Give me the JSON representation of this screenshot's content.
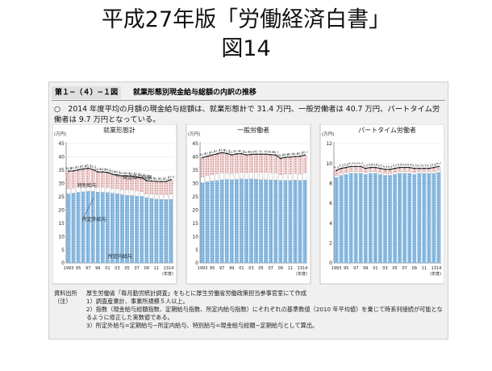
{
  "slide": {
    "title": "平成27年版「労働経済白書」",
    "subtitle": "図14"
  },
  "figure": {
    "label": "第１−（４）−１図",
    "title": "就業形態別現金給与総額の内訳の推移",
    "summary": "○　2014 年度平均の月額の現金給与総額は、就業形態計で 31.4 万円、一般労働者は 40.7 万円、パートタイム労働者は 9.7 万円となっている。"
  },
  "colors": {
    "total_line": "#222222",
    "special_fill": "#e3a7a7",
    "overtime_fill": "#ffffff",
    "scheduled_fill": "#7fb0d8",
    "panel_bg": "#f0f0f0"
  },
  "chart_data": [
    {
      "type": "bar",
      "title": "就業形態計",
      "unit": "(万円)",
      "x_unit": "(年度)",
      "ylim": [
        0,
        45
      ],
      "ytick_step": 5,
      "x_labels": [
        "1993",
        "95",
        "97",
        "99",
        "01",
        "03",
        "05",
        "07",
        "09",
        "11",
        "1314"
      ],
      "annotations": [
        "現金給与総額",
        "特別給与",
        "所定外給与",
        "所定内給与"
      ],
      "categories": [
        "1993",
        "94",
        "95",
        "96",
        "97",
        "98",
        "99",
        "2000",
        "01",
        "02",
        "03",
        "04",
        "05",
        "06",
        "07",
        "08",
        "09",
        "10",
        "11",
        "12",
        "13",
        "14"
      ],
      "series": [
        {
          "name": "所定内給与",
          "values": [
            26.1,
            26.3,
            26.6,
            26.8,
            27.0,
            27.0,
            26.7,
            26.6,
            26.5,
            26.3,
            26.1,
            25.7,
            25.5,
            25.4,
            25.2,
            25.1,
            24.6,
            24.3,
            24.1,
            24.0,
            23.9,
            24.0
          ]
        },
        {
          "name": "所定外給与",
          "values": [
            1.9,
            1.9,
            2.0,
            2.1,
            2.1,
            1.9,
            1.8,
            1.9,
            1.9,
            1.8,
            1.9,
            1.9,
            2.0,
            2.0,
            2.0,
            1.8,
            1.5,
            1.7,
            1.7,
            1.8,
            1.8,
            1.9
          ]
        },
        {
          "name": "特別給与",
          "values": [
            6.6,
            6.5,
            6.5,
            6.5,
            6.6,
            6.3,
            5.8,
            5.8,
            5.7,
            5.3,
            5.2,
            5.2,
            5.3,
            5.3,
            5.2,
            5.3,
            4.9,
            4.9,
            4.9,
            4.9,
            5.0,
            5.5
          ]
        }
      ],
      "totals": [
        34.6,
        34.7,
        35.1,
        35.4,
        35.7,
        35.2,
        34.3,
        34.3,
        34.1,
        33.4,
        33.2,
        32.8,
        32.8,
        32.7,
        32.4,
        32.2,
        31.0,
        30.9,
        30.7,
        30.7,
        30.7,
        31.4
      ]
    },
    {
      "type": "bar",
      "title": "一般労働者",
      "unit": "(万円)",
      "x_unit": "(年度)",
      "ylim": [
        0,
        45
      ],
      "ytick_step": 5,
      "x_labels": [
        "1993",
        "95",
        "97",
        "99",
        "01",
        "03",
        "05",
        "07",
        "09",
        "11",
        "1314"
      ],
      "categories": [
        "1993",
        "94",
        "95",
        "96",
        "97",
        "98",
        "99",
        "2000",
        "01",
        "02",
        "03",
        "04",
        "05",
        "06",
        "07",
        "08",
        "09",
        "10",
        "11",
        "12",
        "13",
        "14"
      ],
      "series": [
        {
          "name": "所定内給与",
          "values": [
            30.2,
            30.6,
            30.9,
            31.1,
            31.4,
            31.5,
            31.4,
            31.5,
            31.7,
            31.6,
            31.7,
            31.6,
            31.4,
            31.4,
            31.3,
            31.3,
            31.1,
            31.1,
            31.1,
            31.2,
            31.1,
            31.2
          ]
        },
        {
          "name": "所定外給与",
          "values": [
            2.3,
            2.3,
            2.4,
            2.5,
            2.6,
            2.4,
            2.3,
            2.4,
            2.4,
            2.4,
            2.5,
            2.6,
            2.7,
            2.7,
            2.7,
            2.6,
            2.1,
            2.4,
            2.4,
            2.5,
            2.5,
            2.6
          ]
        },
        {
          "name": "特別給与",
          "values": [
            7.2,
            7.3,
            7.4,
            7.5,
            7.6,
            7.4,
            7.0,
            7.2,
            7.1,
            6.7,
            6.7,
            6.8,
            6.9,
            6.9,
            6.8,
            6.8,
            6.2,
            6.3,
            6.4,
            6.4,
            6.6,
            6.9
          ]
        }
      ],
      "totals": [
        39.7,
        40.2,
        40.7,
        41.1,
        41.6,
        41.3,
        40.7,
        41.1,
        41.2,
        40.7,
        40.9,
        41.0,
        41.0,
        41.0,
        40.8,
        40.7,
        39.4,
        39.8,
        39.9,
        40.1,
        40.2,
        40.7
      ]
    },
    {
      "type": "bar",
      "title": "パートタイム労働者",
      "unit": "(万円)",
      "x_unit": "(年度)",
      "ylim": [
        0,
        12
      ],
      "ytick_step": 2,
      "x_labels": [
        "1993",
        "95",
        "97",
        "99",
        "01",
        "03",
        "05",
        "07",
        "09",
        "11",
        "1314"
      ],
      "categories": [
        "1993",
        "94",
        "95",
        "96",
        "97",
        "98",
        "99",
        "2000",
        "01",
        "02",
        "03",
        "04",
        "05",
        "06",
        "07",
        "08",
        "09",
        "10",
        "11",
        "12",
        "13",
        "14"
      ],
      "series": [
        {
          "name": "所定内給与",
          "values": [
            8.6,
            8.8,
            8.9,
            9.0,
            9.0,
            9.0,
            8.9,
            9.0,
            9.0,
            8.9,
            8.8,
            8.8,
            8.9,
            9.0,
            9.0,
            9.0,
            8.9,
            9.0,
            9.0,
            9.0,
            9.0,
            9.1
          ]
        },
        {
          "name": "所定外給与",
          "values": [
            0.2,
            0.2,
            0.2,
            0.2,
            0.2,
            0.2,
            0.2,
            0.2,
            0.2,
            0.2,
            0.2,
            0.2,
            0.2,
            0.2,
            0.2,
            0.2,
            0.2,
            0.2,
            0.2,
            0.2,
            0.2,
            0.2
          ]
        },
        {
          "name": "特別給与",
          "values": [
            0.5,
            0.5,
            0.5,
            0.5,
            0.5,
            0.5,
            0.4,
            0.4,
            0.4,
            0.4,
            0.4,
            0.4,
            0.4,
            0.4,
            0.4,
            0.4,
            0.4,
            0.3,
            0.3,
            0.3,
            0.4,
            0.4
          ]
        }
      ],
      "totals": [
        9.3,
        9.5,
        9.6,
        9.7,
        9.7,
        9.7,
        9.5,
        9.6,
        9.6,
        9.5,
        9.4,
        9.4,
        9.5,
        9.6,
        9.6,
        9.6,
        9.5,
        9.5,
        9.5,
        9.5,
        9.6,
        9.7
      ]
    }
  ],
  "notes": [
    {
      "head": "資料出所",
      "body": "厚生労働省「毎月勤労統計調査」をもとに厚生労働省労働政策担当参事官室にて作成"
    },
    {
      "head": "（注）",
      "body": "1）調査産業計、事業所規模５人以上。"
    },
    {
      "head": "",
      "body": "2）指数（現金給与総額指数、定期給与指数、所定内給与指数）にそれぞれの基準数値（2010 年平均値）を乗じて時系列接続が可能となるように修正した実数値である。"
    },
    {
      "head": "",
      "body": "3）所定外給与=定期給与−所定内給与、特別給与=現金給与総額−定期給与として算出。"
    }
  ]
}
